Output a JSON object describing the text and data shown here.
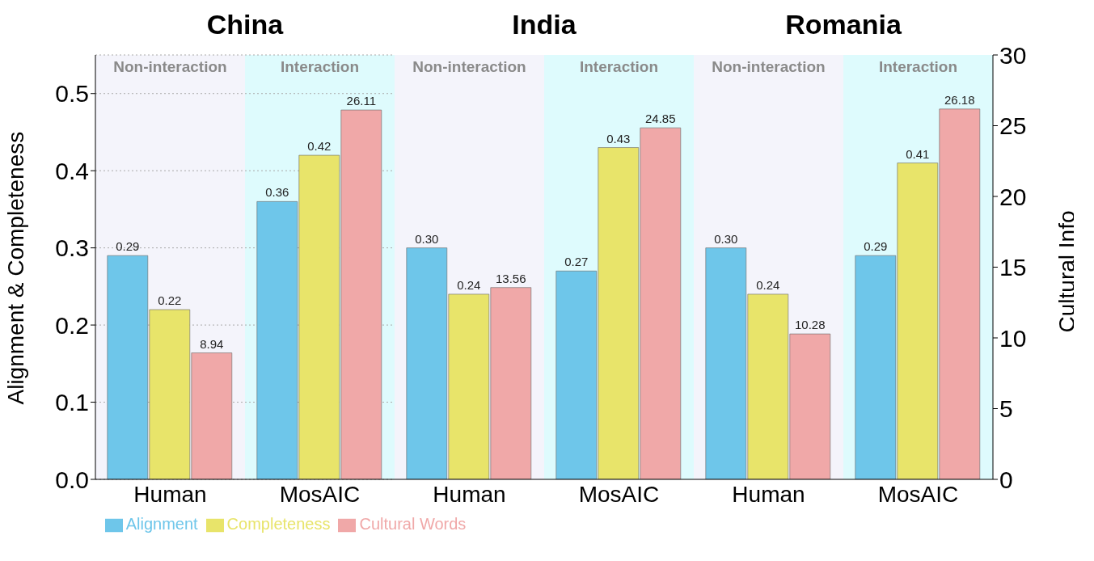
{
  "chart_data": [
    {
      "type": "bar",
      "title": "China",
      "categories": [
        "Human",
        "MosAIC"
      ],
      "ylabel": "Alignment & Completeness",
      "ylim": [
        0,
        0.55
      ],
      "yticks": [
        {
          "value": 0,
          "label": "0.0"
        },
        0.1,
        0.2,
        0.3,
        0.4,
        0.5
      ],
      "y2lim": [
        0,
        30
      ],
      "grid": "y",
      "legend": "bottom",
      "bands": [
        {
          "axis": "x",
          "from": "Human",
          "to": "Human",
          "label": "Non-interaction",
          "color": "#f4f4fb"
        },
        {
          "axis": "x",
          "from": "MosAIC",
          "to": "MosAIC",
          "label": "Interaction",
          "color": "#defbfd"
        }
      ],
      "series": [
        {
          "name": "Alignment",
          "color": "#6ec6ea",
          "values": [
            0.29,
            0.36
          ],
          "value_labels": [
            "0.29",
            "0.36"
          ]
        },
        {
          "name": "Completeness",
          "color": "#e8e46a",
          "values": [
            0.22,
            0.42
          ],
          "value_labels": [
            "0.22",
            "0.42"
          ]
        },
        {
          "name": "Cultural Words",
          "color": "#f0a8a8",
          "axis": "y2",
          "values": [
            8.94,
            26.11
          ],
          "value_labels": [
            "8.94",
            "26.11"
          ]
        }
      ]
    },
    {
      "type": "bar",
      "title": "India",
      "categories": [
        "Human",
        "MosAIC"
      ],
      "ylim": [
        0,
        0.55
      ],
      "y2lim": [
        0,
        30
      ],
      "tick_labels": "x",
      "bands": [
        {
          "axis": "x",
          "from": "Human",
          "to": "Human",
          "label": "Non-interaction",
          "color": "#f4f4fb"
        },
        {
          "axis": "x",
          "from": "MosAIC",
          "to": "MosAIC",
          "label": "Interaction",
          "color": "#defbfd"
        }
      ],
      "series": [
        {
          "color": "#6ec6ea",
          "values": [
            0.3,
            0.27
          ],
          "value_labels": [
            "0.30",
            "0.27"
          ]
        },
        {
          "color": "#e8e46a",
          "values": [
            0.24,
            0.43
          ],
          "value_labels": [
            "0.24",
            "0.43"
          ]
        },
        {
          "color": "#f0a8a8",
          "axis": "y2",
          "values": [
            13.56,
            24.85
          ],
          "value_labels": [
            "13.56",
            "24.85"
          ]
        }
      ]
    },
    {
      "type": "bar",
      "title": "Romania",
      "categories": [
        "Human",
        "MosAIC"
      ],
      "y2label": "Cultural Info",
      "ylim": [
        0,
        0.55
      ],
      "y2lim": [
        0,
        30
      ],
      "y2ticks": [
        0,
        5,
        10,
        15,
        20,
        25,
        30
      ],
      "bands": [
        {
          "axis": "x",
          "from": "Human",
          "to": "Human",
          "label": "Non-interaction",
          "color": "#f4f4fb"
        },
        {
          "axis": "x",
          "from": "MosAIC",
          "to": "MosAIC",
          "label": "Interaction",
          "color": "#defbfd"
        }
      ],
      "series": [
        {
          "color": "#6ec6ea",
          "values": [
            0.3,
            0.29
          ],
          "value_labels": [
            "0.30",
            "0.29"
          ]
        },
        {
          "color": "#e8e46a",
          "values": [
            0.24,
            0.41
          ],
          "value_labels": [
            "0.24",
            "0.41"
          ]
        },
        {
          "color": "#f0a8a8",
          "axis": "y2",
          "values": [
            10.28,
            26.18
          ],
          "value_labels": [
            "10.28",
            "26.18"
          ]
        }
      ]
    }
  ]
}
